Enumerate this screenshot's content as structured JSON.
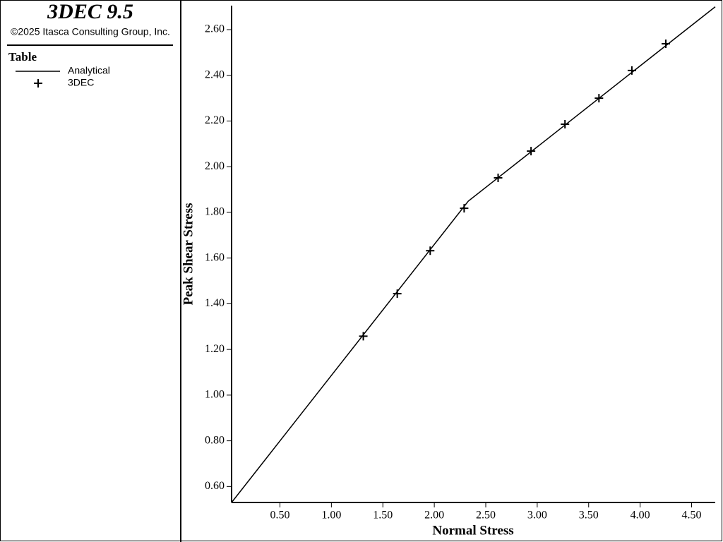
{
  "header": {
    "title": "3DEC 9.5",
    "copyright": "©2025 Itasca Consulting Group, Inc.",
    "legend_title": "Table"
  },
  "chart_data": {
    "type": "line",
    "x_label": "Normal Stress",
    "y_label": "Peak Shear Stress",
    "xlim": [
      0.03,
      4.73
    ],
    "ylim": [
      0.53,
      2.705
    ],
    "xticks": [
      {
        "value": 0.5,
        "label": "0.50"
      },
      {
        "value": 1.0,
        "label": "1.00"
      },
      {
        "value": 1.5,
        "label": "1.50"
      },
      {
        "value": 2.0,
        "label": "2.00"
      },
      {
        "value": 2.5,
        "label": "2.50"
      },
      {
        "value": 3.0,
        "label": "3.00"
      },
      {
        "value": 3.5,
        "label": "3.50"
      },
      {
        "value": 4.0,
        "label": "4.00"
      },
      {
        "value": 4.5,
        "label": "4.50"
      }
    ],
    "yticks": [
      {
        "value": 0.6,
        "label": "0.60"
      },
      {
        "value": 0.8,
        "label": "0.80"
      },
      {
        "value": 1.0,
        "label": "1.00"
      },
      {
        "value": 1.2,
        "label": "1.20"
      },
      {
        "value": 1.4,
        "label": "1.40"
      },
      {
        "value": 1.6,
        "label": "1.60"
      },
      {
        "value": 1.8,
        "label": "1.80"
      },
      {
        "value": 2.0,
        "label": "2.00"
      },
      {
        "value": 2.2,
        "label": "2.20"
      },
      {
        "value": 2.4,
        "label": "2.40"
      },
      {
        "value": 2.6,
        "label": "2.60"
      }
    ],
    "series": [
      {
        "name": "Analytical",
        "style": "line",
        "color": "#000000",
        "x": [
          0.03,
          2.33,
          4.73
        ],
        "values": [
          0.53,
          1.849,
          2.7
        ]
      },
      {
        "name": "3DEC",
        "style": "marker",
        "color": "#000000",
        "x": [
          1.31,
          1.64,
          1.96,
          2.29,
          2.62,
          2.94,
          3.27,
          3.6,
          3.92,
          4.25
        ],
        "values": [
          1.258,
          1.444,
          1.632,
          1.818,
          1.951,
          2.068,
          2.186,
          2.3,
          2.421,
          2.538
        ]
      }
    ]
  }
}
